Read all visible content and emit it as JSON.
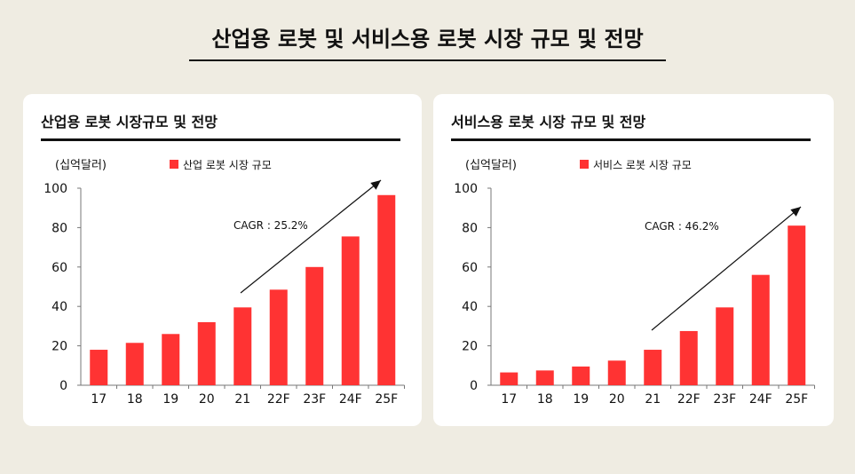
{
  "page": {
    "title": "산업용 로봇 및 서비스용 로봇 시장 규모 및 전망"
  },
  "colors": {
    "bar": "#ff3333",
    "background": "#efece2",
    "card": "#ffffff"
  },
  "chart_data": [
    {
      "type": "bar",
      "title": "산업용 로봇 시장규모 및 전망",
      "unit": "(십억달러)",
      "legend": "산업 로봇 시장 규모",
      "legend_position": "top",
      "annotation": "CAGR : 25.2%",
      "categories": [
        "17",
        "18",
        "19",
        "20",
        "21",
        "22F",
        "23F",
        "24F",
        "25F"
      ],
      "values": [
        18,
        21.5,
        26,
        32,
        39.5,
        48.5,
        60,
        75.5,
        96.5
      ],
      "ylim": [
        0,
        100
      ],
      "yticks": [
        0,
        20,
        40,
        60,
        80,
        100
      ],
      "grid": false
    },
    {
      "type": "bar",
      "title": "서비스용 로봇 시장 규모 및 전망",
      "unit": "(십억달러)",
      "legend": "서비스 로봇 시장 규모",
      "legend_position": "top",
      "annotation": "CAGR : 46.2%",
      "categories": [
        "17",
        "18",
        "19",
        "20",
        "21",
        "22F",
        "23F",
        "24F",
        "25F"
      ],
      "values": [
        6.5,
        7.5,
        9.5,
        12.5,
        18,
        27.5,
        39.5,
        56,
        81
      ],
      "ylim": [
        0,
        100
      ],
      "yticks": [
        0,
        20,
        40,
        60,
        80,
        100
      ],
      "grid": false
    }
  ]
}
